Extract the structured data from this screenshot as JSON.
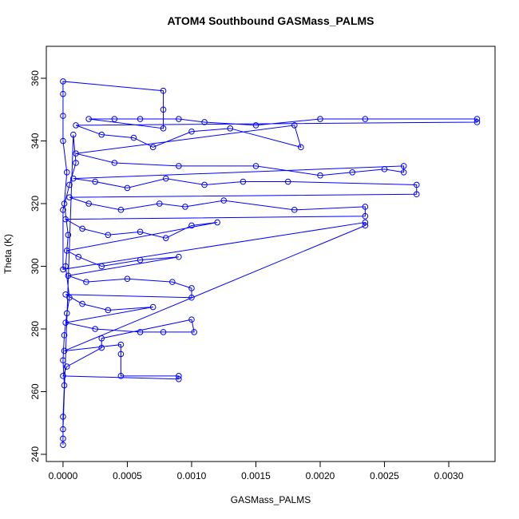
{
  "chart_data": {
    "type": "scatter",
    "lines": true,
    "title": "ATOM4 Southbound GASMass_PALMS",
    "x_label": "GASMass_PALMS",
    "y_label": "Theta (K)",
    "color": "#0000ff",
    "xlim": [
      -0.00013,
      0.00336
    ],
    "ylim": [
      237.7,
      370.2
    ],
    "xticks": [
      {
        "value": 0,
        "label": "0.0000"
      },
      {
        "value": 0.0005,
        "label": "0.0005"
      },
      {
        "value": 0.001,
        "label": "0.0010"
      },
      {
        "value": 0.0015,
        "label": "0.0015"
      },
      {
        "value": 0.002,
        "label": "0.0020"
      },
      {
        "value": 0.0025,
        "label": "0.0025"
      },
      {
        "value": 0.003,
        "label": "0.0030"
      }
    ],
    "yticks": [
      240,
      260,
      280,
      300,
      320,
      340,
      360
    ],
    "x": [
      0,
      0,
      0,
      1e-05,
      0,
      1e-05,
      3e-05,
      5e-05,
      2e-05,
      4e-05,
      1e-05,
      3e-05,
      0,
      0,
      0,
      0,
      0.00078,
      0.00078,
      0.00078,
      0.0002,
      0.0004,
      0.0006,
      0.0009,
      0.0011,
      0.0015,
      0.002,
      0.00235,
      0.00322,
      0.00322,
      0.0001,
      0.0003,
      0.00055,
      0.0007,
      0.001,
      0.0013,
      0.00185,
      0.0018,
      0.0001,
      0.0004,
      0.0009,
      0.0015,
      0.002,
      0.00225,
      0.0025,
      0.00265,
      0.00265,
      8e-05,
      0.00025,
      0.0005,
      0.0008,
      0.0011,
      0.0014,
      0.00175,
      0.00275,
      0.00275,
      5e-05,
      0.0002,
      0.00045,
      0.00075,
      0.00095,
      0.00125,
      0.0018,
      0.00235,
      0.00235,
      2e-05,
      0.00015,
      0.00035,
      0.0006,
      0.0008,
      0.001,
      0.0012,
      3e-05,
      0.00012,
      0.0003,
      0.0006,
      0.0009,
      4e-05,
      0.00018,
      0.0005,
      0.00085,
      0.001,
      0.001,
      2e-05,
      0.00015,
      0.00035,
      0.0007,
      2e-05,
      0.00025,
      0.0006,
      0.00078,
      0.00102,
      0.001,
      0.0003,
      0.0003,
      3e-05,
      0,
      0.0009,
      0.0009,
      0.00045,
      0.00045,
      0.00045,
      1e-05,
      0.00235,
      0.00235,
      0,
      0,
      5e-05,
      0.0001,
      8e-05,
      0
    ],
    "values": [
      243,
      245,
      252,
      262,
      270,
      278,
      285,
      290,
      300,
      310,
      320,
      330,
      340,
      348,
      355,
      359,
      356,
      350,
      344,
      347,
      347,
      347,
      347,
      346,
      345,
      347,
      347,
      347,
      346,
      345,
      342,
      341,
      338,
      343,
      344,
      338,
      345,
      336,
      333,
      332,
      332,
      329,
      330,
      331,
      330,
      332,
      328,
      327,
      325,
      328,
      326,
      327,
      327,
      326,
      323,
      322,
      320,
      318,
      320,
      319,
      321,
      318,
      319,
      316,
      315,
      312,
      310,
      311,
      309,
      313,
      314,
      305,
      303,
      300,
      302,
      303,
      297,
      295,
      296,
      295,
      293,
      290,
      291,
      288,
      286,
      287,
      282,
      280,
      279,
      279,
      279,
      283,
      277,
      274,
      268,
      265,
      264,
      265,
      265,
      272,
      275,
      273,
      313,
      314,
      299,
      318,
      326,
      333,
      342,
      248
    ]
  }
}
